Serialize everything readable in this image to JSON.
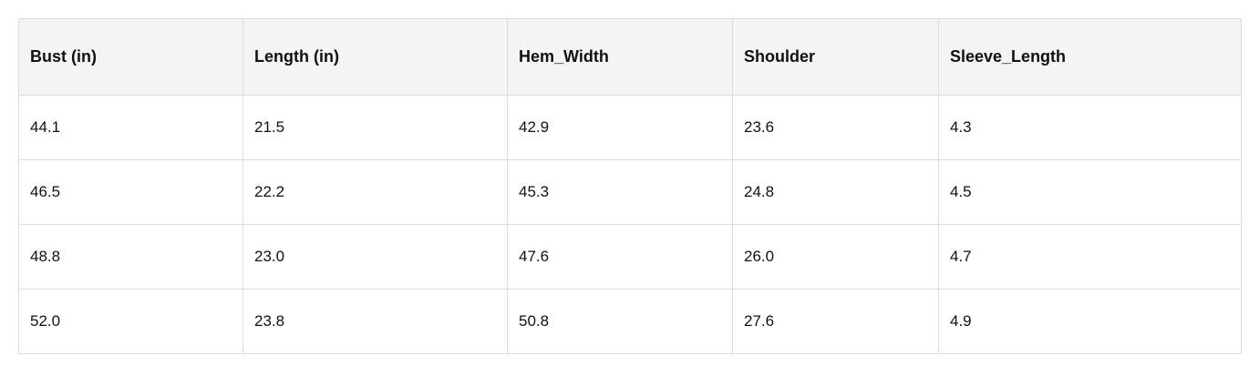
{
  "table": {
    "header": [
      "Bust (in)",
      "Length (in)",
      "Hem_Width",
      "Shoulder",
      "Sleeve_Length"
    ],
    "rows": [
      [
        "44.1",
        "21.5",
        "42.9",
        "23.6",
        "4.3"
      ],
      [
        "46.5",
        "22.2",
        "45.3",
        "24.8",
        "4.5"
      ],
      [
        "48.8",
        "23.0",
        "47.6",
        "26.0",
        "4.7"
      ],
      [
        "52.0",
        "23.8",
        "50.8",
        "27.6",
        "4.9"
      ]
    ]
  }
}
